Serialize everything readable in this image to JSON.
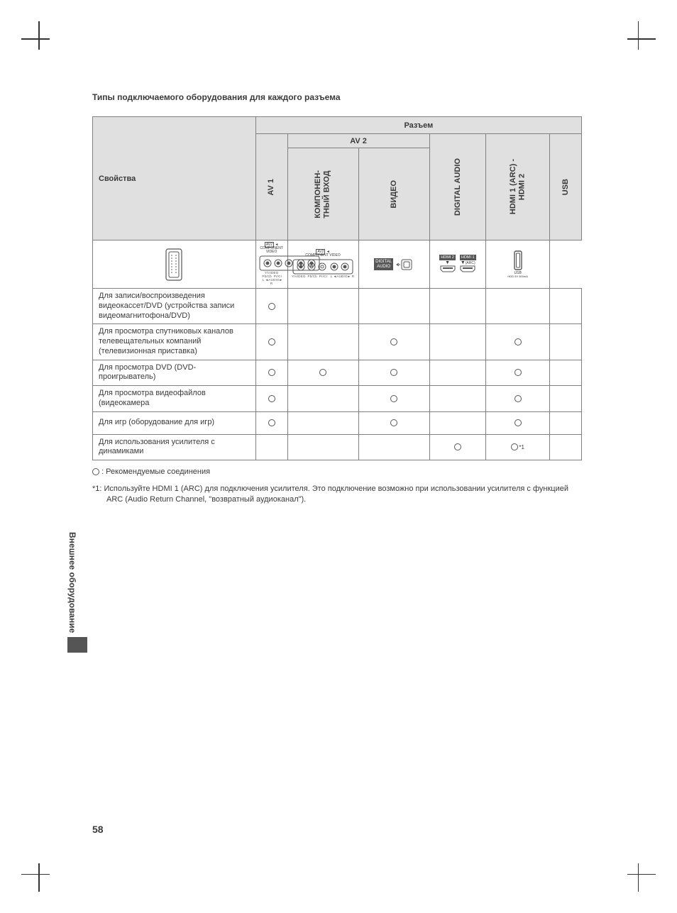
{
  "title": "Типы подключаемого оборудования для каждого разъема",
  "table": {
    "top_group": "Разъем",
    "feature_header": "Свойства",
    "av2_group": "AV 2",
    "columns": {
      "av1": "AV 1",
      "component": "КОМПОНЕН-\nТНЫЙ ВХОД",
      "video": "ВИДЕО",
      "digital_audio": "DIGITAL AUDIO",
      "hdmi": "HDMI 1 (ARC) -\nHDMI 2",
      "usb": "USB"
    },
    "col_widths": {
      "feat": 225,
      "av1": 44,
      "component": 98,
      "video": 98,
      "digital_audio": 78,
      "hdmi": 88,
      "usb": 44
    },
    "icon_labels": {
      "component_caption": "COMPONENT VIDEO",
      "video_caption": "COMPONENT VIDEO",
      "av2_tag": "AV2",
      "digital_audio": "DIGITAL\nAUDIO",
      "hdmi2": "HDMI 2",
      "hdmi1": "HDMI 1",
      "hdmi1_sub": "(ARC)",
      "usb": "USB",
      "usb_sub": "HDD 5V 500mA"
    },
    "rows": [
      {
        "label": "Для записи/воспроизведения видеокассет/DVD (устройства записи видеомагнитофона/DVD)",
        "av1": true,
        "component": false,
        "video": false,
        "digital_audio": false,
        "hdmi": false,
        "usb": false,
        "hdmi_note": ""
      },
      {
        "label": "Для просмотра спутниковых каналов телевещательных компаний (телевизионная приставка)",
        "av1": true,
        "component": false,
        "video": true,
        "digital_audio": false,
        "hdmi": true,
        "usb": false,
        "hdmi_note": ""
      },
      {
        "label": "Для просмотра DVD (DVD-проигрыватель)",
        "av1": true,
        "component": true,
        "video": true,
        "digital_audio": false,
        "hdmi": true,
        "usb": false,
        "hdmi_note": ""
      },
      {
        "label": "Для просмотра видеофайлов (видеокамера",
        "av1": true,
        "component": false,
        "video": true,
        "digital_audio": false,
        "hdmi": true,
        "usb": false,
        "hdmi_note": ""
      },
      {
        "label": "Для игр (оборудование для игр)",
        "av1": true,
        "component": false,
        "video": true,
        "digital_audio": false,
        "hdmi": true,
        "usb": false,
        "hdmi_note": ""
      },
      {
        "label": "Для использования усилителя с динамиками",
        "av1": false,
        "component": false,
        "video": false,
        "digital_audio": true,
        "hdmi": true,
        "usb": false,
        "hdmi_note": "*1"
      }
    ]
  },
  "legend": ": Рекомендуемые соединения",
  "note": "*1: Используйте HDMI 1 (ARC) для подключения усилителя. Это подключение возможно при использовании усилителя с функцией ARC (Audio Return Channel, \"возвратный аудиоканал\").",
  "side_tab": "Внешнее оборудование",
  "page_number": "58"
}
